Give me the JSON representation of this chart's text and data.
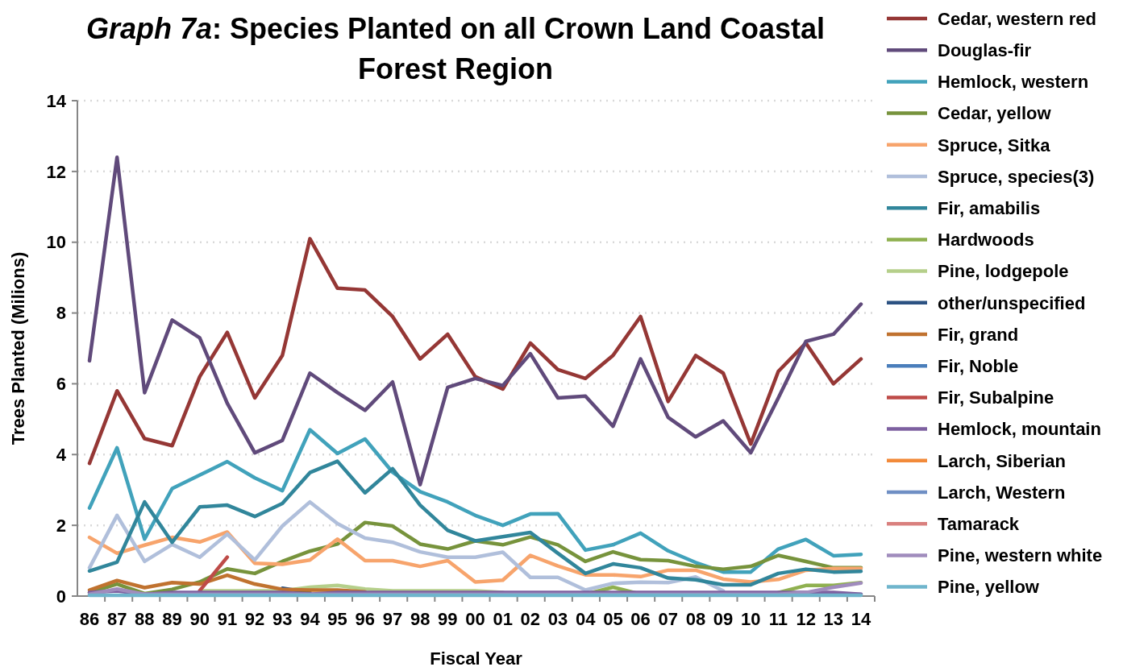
{
  "chart_data": {
    "type": "line",
    "title": "Graph 7a: Species Planted on all Crown Land Coastal Forest Region",
    "xlabel": "Fiscal Year",
    "ylabel": "Trees Planted (Milions)",
    "categories": [
      "86",
      "87",
      "88",
      "89",
      "90",
      "91",
      "92",
      "93",
      "94",
      "95",
      "96",
      "97",
      "98",
      "99",
      "00",
      "01",
      "02",
      "03",
      "04",
      "05",
      "06",
      "07",
      "08",
      "09",
      "10",
      "11",
      "12",
      "13",
      "14"
    ],
    "ylim": [
      0,
      14
    ],
    "yticks": [
      0,
      2,
      4,
      6,
      8,
      10,
      12,
      14
    ],
    "grid": "y",
    "legend": "right",
    "marker": "none",
    "line_style": "solid",
    "series": [
      {
        "name": "Cedar, western red",
        "color": "#953735",
        "values": [
          3.75,
          5.8,
          4.45,
          4.25,
          6.2,
          7.45,
          5.6,
          6.8,
          10.1,
          8.7,
          8.65,
          7.9,
          6.7,
          7.4,
          6.2,
          5.85,
          7.15,
          6.4,
          6.15,
          6.8,
          7.9,
          5.5,
          6.8,
          6.3,
          4.3,
          6.35,
          7.15,
          6.0,
          6.7
        ]
      },
      {
        "name": "Douglas-fir",
        "color": "#604a7b",
        "values": [
          6.65,
          12.4,
          5.75,
          7.8,
          7.3,
          5.45,
          4.05,
          4.4,
          6.3,
          5.75,
          5.25,
          6.05,
          3.15,
          5.9,
          6.15,
          5.95,
          6.85,
          5.6,
          5.65,
          4.8,
          6.7,
          5.05,
          4.5,
          4.95,
          4.05,
          5.6,
          7.2,
          7.4,
          8.25
        ]
      },
      {
        "name": "Hemlock, western",
        "color": "#41a2bb",
        "values": [
          2.49,
          4.19,
          1.61,
          3.04,
          3.42,
          3.8,
          3.34,
          2.98,
          4.7,
          4.03,
          4.44,
          3.5,
          2.95,
          2.66,
          2.28,
          2.0,
          2.32,
          2.33,
          1.3,
          1.45,
          1.78,
          1.28,
          0.95,
          0.68,
          0.68,
          1.33,
          1.6,
          1.14,
          1.18
        ]
      },
      {
        "name": "Cedar, yellow",
        "color": "#77933c",
        "values": [
          0.1,
          0.34,
          0.07,
          0.19,
          0.4,
          0.77,
          0.64,
          0.98,
          1.27,
          1.47,
          2.08,
          1.98,
          1.47,
          1.33,
          1.56,
          1.45,
          1.67,
          1.45,
          0.98,
          1.25,
          1.03,
          1.0,
          0.84,
          0.76,
          0.84,
          1.15,
          0.98,
          0.8,
          0.8
        ]
      },
      {
        "name": "Spruce, Sitka",
        "color": "#f7a46c",
        "values": [
          1.66,
          1.21,
          1.44,
          1.66,
          1.53,
          1.81,
          0.93,
          0.9,
          1.02,
          1.61,
          1.0,
          1.0,
          0.84,
          1.0,
          0.4,
          0.45,
          1.15,
          0.85,
          0.6,
          0.6,
          0.55,
          0.73,
          0.73,
          0.48,
          0.4,
          0.47,
          0.73,
          0.78,
          0.78
        ]
      },
      {
        "name": "Spruce, species(3)",
        "color": "#b0bfdb",
        "values": [
          0.8,
          2.28,
          0.98,
          1.46,
          1.1,
          1.75,
          1.02,
          1.98,
          2.66,
          2.05,
          1.64,
          1.52,
          1.25,
          1.1,
          1.1,
          1.24,
          0.53,
          0.53,
          0.17,
          0.36,
          0.39,
          0.38,
          0.54,
          0.15,
          null,
          0.05,
          0.05,
          0.05,
          0.05
        ]
      },
      {
        "name": "Fir, amabilis",
        "color": "#31869b",
        "values": [
          0.71,
          0.96,
          2.66,
          1.52,
          2.52,
          2.57,
          2.25,
          2.62,
          3.49,
          3.81,
          2.92,
          3.6,
          2.57,
          1.86,
          1.56,
          1.68,
          1.8,
          1.21,
          0.64,
          0.91,
          0.8,
          0.51,
          0.46,
          0.32,
          0.32,
          0.64,
          0.76,
          0.68,
          0.7
        ]
      },
      {
        "name": "Hardwoods",
        "color": "#8fb04f",
        "values": [
          null,
          null,
          null,
          null,
          null,
          null,
          null,
          null,
          null,
          null,
          null,
          null,
          null,
          null,
          null,
          null,
          null,
          null,
          0.05,
          0.25,
          0.05,
          null,
          null,
          null,
          null,
          0.1,
          0.3,
          0.3,
          0.38
        ]
      },
      {
        "name": "Pine, lodgepole",
        "color": "#b5cf8a",
        "values": [
          null,
          null,
          null,
          null,
          0.15,
          0.15,
          0.15,
          0.15,
          0.25,
          0.3,
          0.2,
          0.15,
          0.15,
          0.15,
          0.15,
          0.1,
          null,
          null,
          null,
          null,
          null,
          null,
          null,
          null,
          null,
          null,
          null,
          null,
          null
        ]
      },
      {
        "name": "other/unspecified",
        "color": "#2c5282",
        "values": [
          null,
          null,
          null,
          null,
          null,
          null,
          null,
          0.22,
          0.1,
          null,
          null,
          null,
          null,
          null,
          null,
          null,
          null,
          null,
          null,
          null,
          null,
          null,
          null,
          null,
          null,
          null,
          null,
          null,
          null
        ]
      },
      {
        "name": "Fir, grand",
        "color": "#c0722f",
        "values": [
          0.17,
          0.44,
          0.24,
          0.38,
          0.34,
          0.59,
          0.34,
          0.19,
          0.17,
          0.17,
          0.12,
          null,
          null,
          null,
          null,
          null,
          null,
          null,
          null,
          null,
          null,
          null,
          null,
          null,
          null,
          null,
          null,
          null,
          null
        ]
      },
      {
        "name": "Fir, Noble",
        "color": "#4a7ebb",
        "values": [
          null,
          null,
          null,
          null,
          null,
          null,
          null,
          null,
          null,
          null,
          null,
          null,
          null,
          null,
          null,
          null,
          null,
          null,
          null,
          null,
          null,
          null,
          null,
          null,
          null,
          null,
          null,
          null,
          null
        ]
      },
      {
        "name": "Fir, Subalpine",
        "color": "#be4b48",
        "values": [
          null,
          null,
          null,
          null,
          0.15,
          1.1,
          null,
          null,
          null,
          null,
          null,
          null,
          null,
          null,
          null,
          null,
          null,
          null,
          null,
          null,
          null,
          null,
          null,
          null,
          null,
          null,
          null,
          null,
          null
        ]
      },
      {
        "name": "Hemlock, mountain",
        "color": "#7d60a0",
        "values": [
          0.1,
          0.15,
          0.05,
          0.1,
          0.1,
          0.1,
          0.1,
          0.1,
          0.05,
          0.1,
          0.1,
          0.1,
          0.1,
          0.1,
          0.1,
          0.1,
          0.1,
          0.1,
          0.1,
          0.1,
          0.1,
          0.1,
          0.1,
          0.1,
          0.1,
          0.1,
          0.1,
          0.1,
          0.05
        ]
      },
      {
        "name": "Larch, Siberian",
        "color": "#f28a3a",
        "values": [
          null,
          null,
          null,
          null,
          null,
          null,
          null,
          null,
          null,
          null,
          null,
          null,
          null,
          null,
          null,
          null,
          null,
          null,
          null,
          null,
          null,
          null,
          null,
          null,
          null,
          null,
          null,
          null,
          null
        ]
      },
      {
        "name": "Larch, Western",
        "color": "#6f8fc4",
        "values": [
          null,
          null,
          null,
          null,
          null,
          null,
          null,
          null,
          null,
          null,
          null,
          null,
          null,
          null,
          null,
          null,
          null,
          null,
          null,
          null,
          null,
          null,
          null,
          null,
          null,
          null,
          null,
          null,
          null
        ]
      },
      {
        "name": "Tamarack",
        "color": "#d9807e",
        "values": [
          null,
          null,
          null,
          null,
          null,
          null,
          null,
          null,
          null,
          null,
          null,
          null,
          null,
          null,
          null,
          null,
          null,
          null,
          null,
          null,
          null,
          null,
          null,
          null,
          null,
          null,
          null,
          null,
          null
        ]
      },
      {
        "name": "Pine, western white",
        "color": "#a08cbd",
        "values": [
          0.05,
          0.2,
          0.05,
          0.05,
          0.05,
          0.05,
          0.05,
          0.05,
          0.05,
          0.05,
          0.05,
          0.05,
          0.05,
          0.05,
          0.05,
          0.05,
          0.05,
          0.05,
          0.05,
          0.05,
          0.05,
          0.05,
          0.05,
          0.05,
          0.05,
          0.05,
          0.1,
          0.25,
          0.37
        ]
      },
      {
        "name": "Pine, yellow",
        "color": "#6fb5cc",
        "values": [
          0.02,
          0.02,
          0.02,
          0.02,
          0.02,
          0.02,
          0.02,
          0.02,
          0.02,
          0.02,
          0.02,
          0.02,
          0.02,
          0.02,
          0.02,
          0.02,
          0.02,
          0.02,
          0.02,
          0.02,
          0.02,
          0.02,
          0.02,
          0.02,
          0.02,
          0.02,
          0.02,
          0.02,
          0.02
        ]
      }
    ]
  }
}
